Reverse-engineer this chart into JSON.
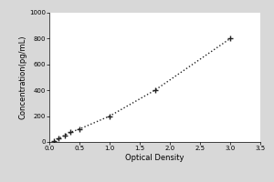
{
  "x_data": [
    0.08,
    0.15,
    0.25,
    0.35,
    0.5,
    1.0,
    1.75,
    3.0
  ],
  "y_data": [
    5,
    25,
    50,
    75,
    100,
    200,
    400,
    800
  ],
  "xlabel": "Optical Density",
  "ylabel": "Concentration(pg/mL)",
  "xlim": [
    0,
    3.5
  ],
  "ylim": [
    0,
    1000
  ],
  "xticks": [
    0,
    0.5,
    1.0,
    1.5,
    2.0,
    2.5,
    3.0,
    3.5
  ],
  "yticks": [
    0,
    200,
    400,
    600,
    800,
    1000
  ],
  "line_color": "#222222",
  "marker": "+",
  "marker_size": 5,
  "marker_color": "#222222",
  "linestyle": "dotted",
  "outer_bg_color": "#d8d8d8",
  "plot_bg_color": "#ffffff",
  "axis_fontsize": 6,
  "tick_fontsize": 5,
  "linewidth": 1.0,
  "markeredgewidth": 1.0
}
